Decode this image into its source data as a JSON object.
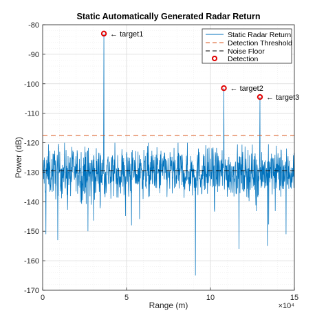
{
  "chart_data": {
    "type": "line",
    "title": "Static Automatically Generated Radar Return",
    "xlabel": "Range (m)",
    "ylabel": "Power (dB)",
    "x_exponent_label": "×10⁴",
    "xlim": [
      0,
      150000
    ],
    "ylim": [
      -170,
      -80
    ],
    "xticks": [
      0,
      50000,
      100000,
      150000
    ],
    "xtick_labels": [
      "0",
      "5",
      "10",
      "15"
    ],
    "yticks": [
      -80,
      -90,
      -100,
      -110,
      -120,
      -130,
      -140,
      -150,
      -160,
      -170
    ],
    "grid": true,
    "minor_grid": true,
    "legend_position": "top-right",
    "colors": {
      "signal": "#0072bd",
      "threshold": "#d95319",
      "noise_floor": "#000000",
      "detection": "#e00000",
      "grid": "#d9d9d9"
    },
    "legend": [
      {
        "label": "Static Radar Return",
        "style": "line"
      },
      {
        "label": "Detection Threshold",
        "style": "dashed-red"
      },
      {
        "label": "Noise Floor",
        "style": "dashed-black"
      },
      {
        "label": "Detection",
        "style": "marker"
      }
    ],
    "series": [
      {
        "name": "Static Radar Return",
        "noise_mean": -130,
        "noise_spread": [
          -154,
          -120
        ],
        "deep_dips": [
          {
            "x": 2000,
            "y": -151
          },
          {
            "x": 9000,
            "y": -153
          },
          {
            "x": 27000,
            "y": -150
          },
          {
            "x": 53000,
            "y": -148
          },
          {
            "x": 91000,
            "y": -165
          },
          {
            "x": 117000,
            "y": -156
          },
          {
            "x": 134000,
            "y": -155
          },
          {
            "x": 145000,
            "y": -151
          }
        ]
      },
      {
        "name": "Detection Threshold",
        "y": -117.5
      },
      {
        "name": "Noise Floor",
        "y": -129.5
      }
    ],
    "detections": [
      {
        "label": "← target1",
        "x": 36500,
        "y": -83
      },
      {
        "label": "← target2",
        "x": 108000,
        "y": -101.5
      },
      {
        "label": "← target3",
        "x": 129500,
        "y": -104.5
      }
    ]
  }
}
